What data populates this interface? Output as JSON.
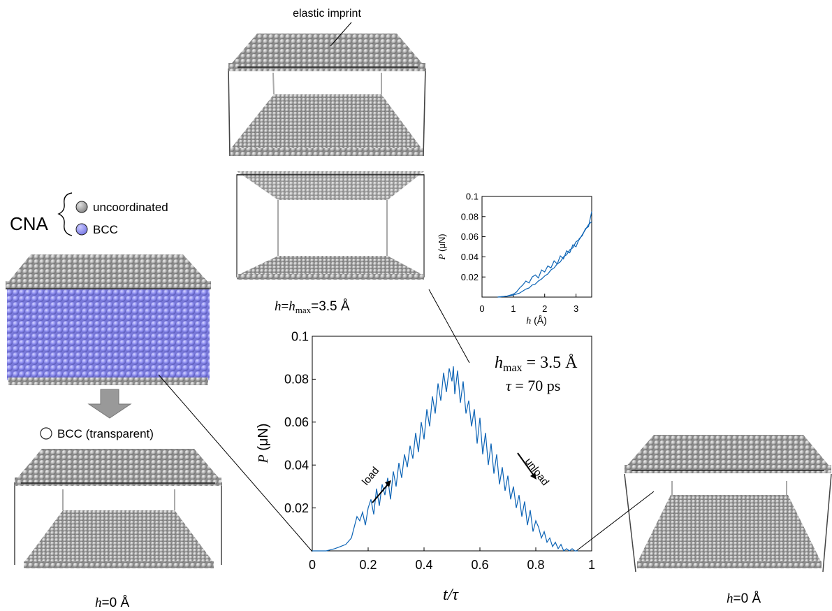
{
  "legend": {
    "cna_label": "CNA",
    "uncoordinated_label": "uncoordinated",
    "bcc_label": "BCC",
    "transparent_label": "BCC (transparent)"
  },
  "annotations": {
    "elastic_imprint": "elastic imprint",
    "load": "load",
    "unload": "unload",
    "hmax_text": "h_max = 3.5 Å",
    "tau_text": "τ = 70 ps"
  },
  "captions": {
    "h_hmax": "h=h_max=3.5 Å",
    "h0_left": "h=0 Å",
    "h0_right": "h=0 Å"
  },
  "colors": {
    "line": "#0b63b5",
    "atom_gray": "#a8a8a8",
    "atom_bcc": "#8f8ff0",
    "arrow_fill": "#999999"
  },
  "chart_data": [
    {
      "type": "line",
      "name": "main",
      "xlabel": "t/τ",
      "ylabel": "P (μN)",
      "xlim": [
        0,
        1
      ],
      "ylim": [
        0,
        0.1
      ],
      "xticks": [
        "0",
        "0.2",
        "0.4",
        "0.6",
        "0.8",
        "1"
      ],
      "yticks": [
        "0.02",
        "0.04",
        "0.06",
        "0.08",
        "0.1"
      ],
      "x": [
        0.0,
        0.05,
        0.08,
        0.1,
        0.12,
        0.14,
        0.15,
        0.16,
        0.17,
        0.18,
        0.19,
        0.2,
        0.21,
        0.22,
        0.23,
        0.24,
        0.25,
        0.26,
        0.27,
        0.28,
        0.29,
        0.3,
        0.31,
        0.32,
        0.33,
        0.34,
        0.35,
        0.36,
        0.37,
        0.38,
        0.39,
        0.4,
        0.41,
        0.42,
        0.43,
        0.44,
        0.45,
        0.46,
        0.47,
        0.48,
        0.49,
        0.5,
        0.505,
        0.51,
        0.52,
        0.53,
        0.54,
        0.55,
        0.56,
        0.57,
        0.58,
        0.59,
        0.6,
        0.61,
        0.62,
        0.63,
        0.64,
        0.65,
        0.66,
        0.67,
        0.68,
        0.69,
        0.7,
        0.71,
        0.72,
        0.73,
        0.74,
        0.75,
        0.76,
        0.77,
        0.78,
        0.79,
        0.8,
        0.81,
        0.82,
        0.83,
        0.84,
        0.85,
        0.86,
        0.87,
        0.88,
        0.89,
        0.9,
        0.91,
        0.92,
        0.93,
        0.94,
        0.95
      ],
      "y": [
        0.0,
        0.0,
        0.001,
        0.002,
        0.003,
        0.006,
        0.011,
        0.016,
        0.014,
        0.018,
        0.012,
        0.02,
        0.024,
        0.017,
        0.029,
        0.021,
        0.031,
        0.026,
        0.034,
        0.024,
        0.037,
        0.03,
        0.041,
        0.034,
        0.045,
        0.039,
        0.049,
        0.043,
        0.055,
        0.046,
        0.06,
        0.052,
        0.066,
        0.058,
        0.072,
        0.064,
        0.078,
        0.07,
        0.083,
        0.074,
        0.085,
        0.079,
        0.086,
        0.073,
        0.084,
        0.069,
        0.079,
        0.064,
        0.07,
        0.058,
        0.066,
        0.05,
        0.062,
        0.045,
        0.055,
        0.04,
        0.05,
        0.036,
        0.045,
        0.031,
        0.039,
        0.028,
        0.035,
        0.024,
        0.03,
        0.02,
        0.026,
        0.016,
        0.023,
        0.012,
        0.019,
        0.009,
        0.014,
        0.011,
        0.006,
        0.009,
        0.004,
        0.006,
        0.002,
        0.004,
        0.001,
        0.003,
        0.0,
        0.001,
        0.0,
        0.001,
        0.0,
        0.0
      ]
    },
    {
      "type": "line",
      "name": "inset",
      "xlabel": "h (Å)",
      "ylabel": "P (μN)",
      "xlim": [
        0,
        3.5
      ],
      "ylim": [
        0,
        0.1
      ],
      "xticks": [
        "0",
        "1",
        "2",
        "3"
      ],
      "yticks": [
        "0.02",
        "0.04",
        "0.06",
        "0.08",
        "0.1"
      ],
      "series": [
        {
          "x": [
            0.5,
            0.8,
            1.0,
            1.1,
            1.2,
            1.3,
            1.4,
            1.5,
            1.6,
            1.7,
            1.8,
            1.9,
            2.0,
            2.1,
            2.2,
            2.3,
            2.4,
            2.5,
            2.6,
            2.7,
            2.8,
            2.9,
            3.0,
            3.1,
            3.2,
            3.3,
            3.4,
            3.5
          ],
          "y": [
            0.0,
            0.001,
            0.003,
            0.005,
            0.009,
            0.012,
            0.016,
            0.014,
            0.02,
            0.022,
            0.019,
            0.027,
            0.025,
            0.031,
            0.029,
            0.036,
            0.033,
            0.041,
            0.038,
            0.046,
            0.044,
            0.052,
            0.05,
            0.058,
            0.061,
            0.068,
            0.07,
            0.085
          ]
        },
        {
          "x": [
            3.5,
            3.4,
            3.3,
            3.2,
            3.1,
            3.0,
            2.9,
            2.8,
            2.7,
            2.6,
            2.5,
            2.4,
            2.3,
            2.2,
            2.1,
            2.0,
            1.9,
            1.8,
            1.7,
            1.6,
            1.5,
            1.4,
            1.3,
            1.2,
            1.1,
            1.0,
            0.8,
            0.5
          ],
          "y": [
            0.075,
            0.072,
            0.067,
            0.062,
            0.057,
            0.055,
            0.049,
            0.047,
            0.042,
            0.04,
            0.035,
            0.033,
            0.029,
            0.027,
            0.023,
            0.021,
            0.018,
            0.016,
            0.013,
            0.012,
            0.009,
            0.008,
            0.006,
            0.004,
            0.003,
            0.002,
            0.001,
            0.0
          ]
        }
      ]
    }
  ]
}
